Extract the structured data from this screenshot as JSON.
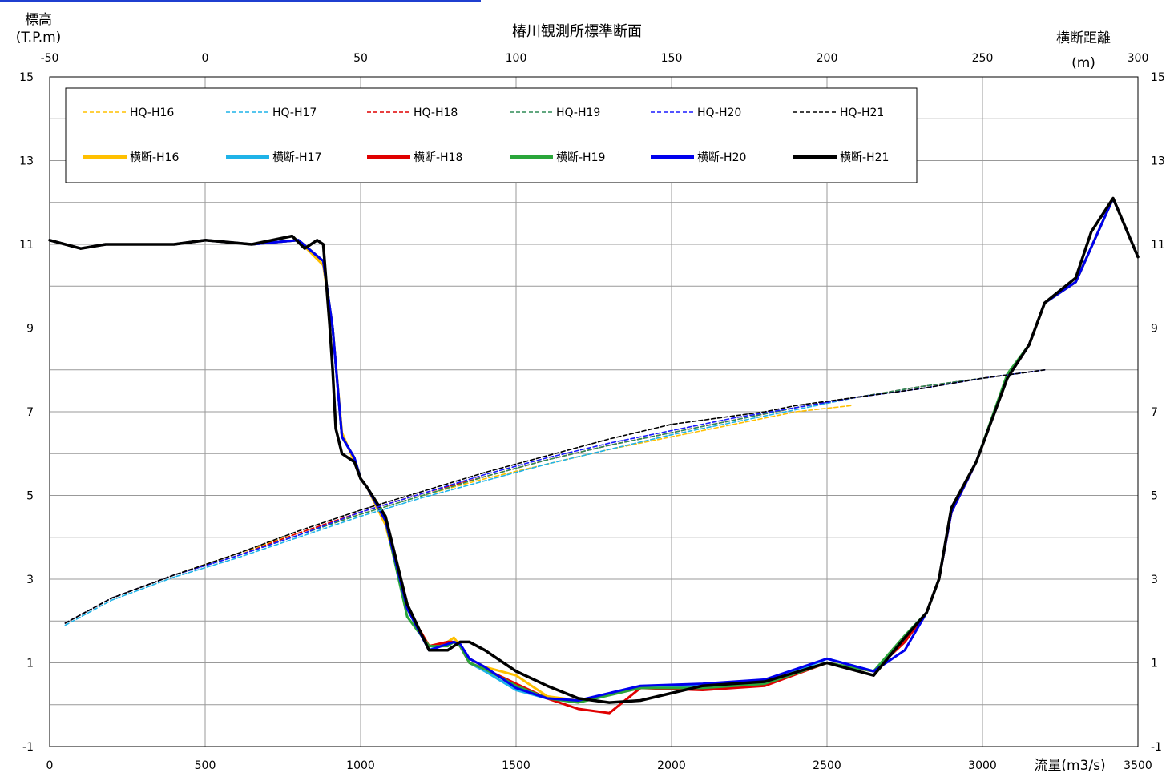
{
  "chart_data": {
    "type": "line",
    "title": "椿川観測所標準断面",
    "y_axis_label_line1": "標高",
    "y_axis_label_line2": "(T.P.m)",
    "top_axis_label_line1": "横断距離",
    "top_axis_label_line2": "(m)",
    "bottom_axis_label": "流量(m3/s)",
    "ylim": [
      -1,
      15
    ],
    "y_ticks": [
      -1,
      1,
      3,
      5,
      7,
      9,
      11,
      13,
      15
    ],
    "y_ticks_right": [
      -1,
      1,
      3,
      5,
      7,
      9,
      11,
      13,
      15
    ],
    "xlim_bottom": [
      0,
      3500
    ],
    "x_ticks_bottom": [
      0,
      500,
      1000,
      1500,
      2000,
      2500,
      3000,
      3500
    ],
    "xlim_top": [
      -50,
      300
    ],
    "x_ticks_top": [
      -50,
      0,
      50,
      100,
      150,
      200,
      250,
      300
    ],
    "grid": "vertical and horizontal",
    "legend_position": "top-left",
    "hq_series": [
      {
        "name": "HQ-H16",
        "color": "#ffc000",
        "x": [
          50,
          200,
          400,
          600,
          800,
          1000,
          1200,
          1400,
          1600,
          1800,
          2000,
          2200,
          2400,
          2580
        ],
        "y": [
          1.95,
          2.55,
          3.1,
          3.6,
          4.1,
          4.55,
          5.0,
          5.4,
          5.75,
          6.1,
          6.4,
          6.7,
          7.0,
          7.15
        ]
      },
      {
        "name": "HQ-H17",
        "color": "#1fb3e8",
        "x": [
          50,
          200,
          400,
          600,
          800,
          1000,
          1200,
          1400,
          1600,
          1800,
          2000,
          2200,
          2400,
          2600,
          2800,
          3000,
          3150
        ],
        "y": [
          1.9,
          2.5,
          3.05,
          3.5,
          4.0,
          4.5,
          4.95,
          5.35,
          5.75,
          6.1,
          6.45,
          6.75,
          7.05,
          7.35,
          7.6,
          7.8,
          7.95
        ]
      },
      {
        "name": "HQ-H18",
        "color": "#e00000",
        "x": [
          50,
          200,
          400,
          600,
          800,
          1000,
          1200,
          1400,
          1600,
          1800,
          2000,
          2200,
          2400,
          2600,
          2800,
          3000,
          3150
        ],
        "y": [
          1.95,
          2.55,
          3.1,
          3.55,
          4.1,
          4.6,
          5.05,
          5.45,
          5.85,
          6.2,
          6.5,
          6.8,
          7.1,
          7.35,
          7.6,
          7.8,
          7.95
        ]
      },
      {
        "name": "HQ-H19",
        "color": "#2e8b57",
        "x": [
          50,
          200,
          400,
          600,
          800,
          1000,
          1200,
          1400,
          1600,
          1800,
          2000,
          2200,
          2400,
          2600,
          2800,
          3000,
          3150
        ],
        "y": [
          1.95,
          2.55,
          3.1,
          3.55,
          4.05,
          4.55,
          5.0,
          5.45,
          5.85,
          6.2,
          6.5,
          6.8,
          7.1,
          7.35,
          7.6,
          7.8,
          7.95
        ]
      },
      {
        "name": "HQ-H20",
        "color": "#1a1aff",
        "x": [
          50,
          200,
          400,
          600,
          800,
          1000,
          1200,
          1400,
          1600,
          1800,
          2000,
          2200,
          2400,
          2600,
          2800,
          3000,
          3200
        ],
        "y": [
          1.95,
          2.55,
          3.1,
          3.55,
          4.05,
          4.6,
          5.05,
          5.5,
          5.9,
          6.25,
          6.55,
          6.85,
          7.1,
          7.35,
          7.55,
          7.8,
          8.0
        ]
      },
      {
        "name": "HQ-H21",
        "color": "#000000",
        "x": [
          50,
          200,
          400,
          600,
          800,
          1000,
          1200,
          1400,
          1600,
          1800,
          2000,
          2100,
          2200,
          2300,
          2400,
          2600,
          2800,
          3000,
          3200
        ],
        "y": [
          1.95,
          2.55,
          3.1,
          3.6,
          4.15,
          4.65,
          5.1,
          5.55,
          5.95,
          6.35,
          6.7,
          6.8,
          6.9,
          7.0,
          7.15,
          7.35,
          7.55,
          7.8,
          8.0
        ]
      }
    ],
    "section_series": [
      {
        "name": "横断-H16",
        "color": "#ffc000",
        "x": [
          -50,
          -40,
          -32,
          -25,
          -18,
          -10,
          0,
          15,
          30,
          38,
          41,
          44,
          48,
          50,
          52,
          58,
          65,
          72,
          78,
          80,
          82,
          85,
          90,
          100,
          110,
          120,
          140,
          160,
          180,
          200,
          215,
          225,
          232,
          236,
          240,
          248,
          258,
          265,
          270,
          280,
          292,
          300
        ],
        "y": [
          11.1,
          10.9,
          11.0,
          11.0,
          11.0,
          11.0,
          11.1,
          11.0,
          11.1,
          10.5,
          9.0,
          6.5,
          5.8,
          5.4,
          5.2,
          4.3,
          2.3,
          1.4,
          1.5,
          1.6,
          1.4,
          1.1,
          0.9,
          0.7,
          0.2,
          0.1,
          0.4,
          0.4,
          0.5,
          1.0,
          0.8,
          1.6,
          2.2,
          3.0,
          4.6,
          5.8,
          7.8,
          8.6,
          9.6,
          10.1,
          12.1,
          10.7
        ]
      },
      {
        "name": "横断-H17",
        "color": "#1fb3e8",
        "x": [
          -50,
          -40,
          -32,
          -25,
          -18,
          -10,
          0,
          15,
          30,
          38,
          41,
          44,
          48,
          50,
          52,
          58,
          65,
          72,
          78,
          80,
          82,
          85,
          90,
          100,
          110,
          120,
          140,
          160,
          180,
          200,
          215,
          225,
          232,
          236,
          240,
          248,
          258,
          265,
          270,
          280,
          292,
          300
        ],
        "y": [
          11.1,
          10.9,
          11.0,
          11.0,
          11.0,
          11.0,
          11.1,
          11.0,
          11.1,
          10.6,
          9.0,
          6.4,
          5.9,
          5.4,
          5.2,
          4.4,
          2.3,
          1.3,
          1.5,
          1.5,
          1.4,
          1.0,
          0.8,
          0.35,
          0.15,
          0.1,
          0.4,
          0.45,
          0.5,
          1.1,
          0.8,
          1.5,
          2.2,
          3.0,
          4.6,
          5.8,
          7.8,
          8.6,
          9.6,
          10.1,
          12.1,
          10.7
        ]
      },
      {
        "name": "横断-H18",
        "color": "#e00000",
        "x": [
          -50,
          -40,
          -32,
          -25,
          -18,
          -10,
          0,
          15,
          30,
          38,
          41,
          44,
          48,
          50,
          52,
          58,
          65,
          72,
          78,
          80,
          82,
          85,
          90,
          100,
          110,
          120,
          130,
          140,
          160,
          180,
          200,
          215,
          225,
          232,
          236,
          240,
          248,
          258,
          265,
          270,
          280,
          292,
          300
        ],
        "y": [
          11.1,
          10.9,
          11.0,
          11.0,
          11.0,
          11.0,
          11.1,
          11.0,
          11.1,
          10.6,
          9.0,
          6.4,
          5.9,
          5.4,
          5.2,
          4.4,
          2.3,
          1.4,
          1.5,
          1.5,
          1.4,
          1.0,
          0.85,
          0.5,
          0.15,
          -0.1,
          -0.2,
          0.4,
          0.35,
          0.45,
          1.0,
          0.8,
          1.5,
          2.2,
          3.0,
          4.6,
          5.8,
          7.8,
          8.6,
          9.6,
          10.1,
          12.1,
          10.7
        ]
      },
      {
        "name": "横断-H19",
        "color": "#2aa63a",
        "x": [
          -50,
          -40,
          -32,
          -25,
          -18,
          -10,
          0,
          15,
          30,
          38,
          41,
          44,
          48,
          50,
          52,
          58,
          65,
          72,
          78,
          80,
          82,
          85,
          90,
          100,
          110,
          120,
          140,
          160,
          180,
          200,
          215,
          225,
          232,
          236,
          240,
          248,
          258,
          265,
          270,
          280,
          292,
          300
        ],
        "y": [
          11.1,
          10.9,
          11.0,
          11.0,
          11.0,
          11.0,
          11.1,
          11.0,
          11.1,
          10.6,
          9.0,
          6.4,
          5.9,
          5.4,
          5.2,
          4.4,
          2.1,
          1.4,
          1.4,
          1.5,
          1.4,
          1.0,
          0.85,
          0.45,
          0.15,
          0.05,
          0.4,
          0.4,
          0.5,
          1.0,
          0.8,
          1.65,
          2.2,
          3.0,
          4.7,
          5.8,
          7.9,
          8.6,
          9.6,
          10.1,
          12.1,
          10.7
        ]
      },
      {
        "name": "横断-H20",
        "color": "#0000ee",
        "x": [
          -50,
          -40,
          -32,
          -25,
          -18,
          -10,
          0,
          15,
          30,
          38,
          41,
          44,
          48,
          50,
          52,
          58,
          65,
          72,
          78,
          80,
          82,
          85,
          90,
          100,
          110,
          120,
          140,
          160,
          180,
          200,
          215,
          225,
          232,
          236,
          240,
          248,
          258,
          265,
          270,
          280,
          292,
          300
        ],
        "y": [
          11.1,
          10.9,
          11.0,
          11.0,
          11.0,
          11.0,
          11.1,
          11.0,
          11.1,
          10.6,
          9.0,
          6.4,
          5.9,
          5.4,
          5.2,
          4.4,
          2.3,
          1.3,
          1.45,
          1.5,
          1.45,
          1.1,
          0.9,
          0.4,
          0.15,
          0.1,
          0.45,
          0.5,
          0.6,
          1.1,
          0.8,
          1.3,
          2.2,
          3.0,
          4.6,
          5.8,
          7.8,
          8.6,
          9.6,
          10.1,
          12.1,
          10.7
        ]
      },
      {
        "name": "横断-H21",
        "color": "#000000",
        "x": [
          -50,
          -40,
          -32,
          -25,
          -18,
          -10,
          0,
          15,
          28,
          32,
          36,
          38,
          40,
          41,
          42,
          44,
          48,
          50,
          52,
          58,
          65,
          72,
          78,
          80,
          82,
          85,
          90,
          100,
          110,
          120,
          130,
          140,
          160,
          180,
          200,
          215,
          225,
          232,
          236,
          240,
          248,
          258,
          265,
          270,
          280,
          285,
          292,
          300
        ],
        "y": [
          11.1,
          10.9,
          11.0,
          11.0,
          11.0,
          11.0,
          11.1,
          11.0,
          11.2,
          10.9,
          11.1,
          11.0,
          9.1,
          8.0,
          6.6,
          6.0,
          5.8,
          5.4,
          5.2,
          4.5,
          2.4,
          1.3,
          1.3,
          1.4,
          1.5,
          1.5,
          1.3,
          0.8,
          0.45,
          0.15,
          0.05,
          0.1,
          0.45,
          0.55,
          1.0,
          0.7,
          1.6,
          2.2,
          3.0,
          4.7,
          5.8,
          7.8,
          8.6,
          9.6,
          10.2,
          11.3,
          12.1,
          10.7
        ]
      }
    ]
  }
}
